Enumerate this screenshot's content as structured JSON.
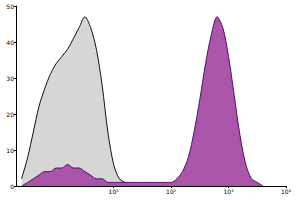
{
  "chart_data": {
    "type": "area",
    "log": "x",
    "grid": false,
    "x": [
      0.25,
      0.32,
      0.4,
      0.5,
      0.63,
      0.79,
      1,
      1.26,
      1.58,
      2,
      2.51,
      3.16,
      3.98,
      5.01,
      6.31,
      7.94,
      10,
      12.6,
      15.8,
      20,
      25.1,
      31.6,
      39.8,
      50.1,
      63.1,
      79.4,
      100,
      126,
      158,
      200,
      251,
      316,
      398,
      501,
      631,
      794,
      1000,
      1259,
      1585,
      1995,
      2512,
      3162,
      3981
    ],
    "series": [
      {
        "color": "#d4d4d4",
        "values": [
          2,
          8,
          15,
          22,
          27,
          31,
          34,
          36,
          38,
          41,
          44,
          47,
          44,
          38,
          28,
          15,
          6,
          2,
          1,
          0,
          0,
          0,
          0,
          0,
          0,
          0,
          0,
          0,
          0,
          0,
          0,
          0,
          0,
          0,
          0,
          0,
          0,
          0,
          0,
          0,
          0,
          0,
          0
        ]
      },
      {
        "color": "#a64ca6",
        "values": [
          0,
          1,
          2,
          3,
          4,
          4,
          5,
          5,
          6,
          5,
          5,
          4,
          3,
          2,
          2,
          1,
          1,
          1,
          1,
          1,
          1,
          1,
          1,
          1,
          1,
          1,
          1,
          2,
          4,
          8,
          15,
          24,
          34,
          42,
          47,
          44,
          36,
          25,
          14,
          6,
          2,
          1,
          0
        ]
      }
    ],
    "xlim": [
      0.2,
      10000
    ],
    "xticks": [
      {
        "value": 10,
        "label": "10¹"
      },
      {
        "value": 100,
        "label": "10²"
      },
      {
        "value": 1000,
        "label": "10³"
      },
      {
        "value": 10000,
        "label": "10⁴"
      }
    ],
    "ylim": [
      0,
      50
    ],
    "yticks": [
      0,
      10,
      20,
      30,
      40,
      50
    ]
  }
}
